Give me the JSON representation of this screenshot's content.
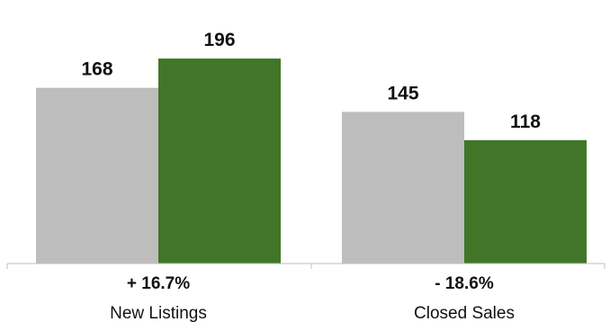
{
  "chart_data": {
    "type": "bar",
    "categories": [
      "New Listings",
      "Closed Sales"
    ],
    "series": [
      {
        "values": [
          168,
          145
        ],
        "color": "#bdbdbd"
      },
      {
        "values": [
          196,
          118
        ],
        "color": "#417628"
      }
    ],
    "changes": [
      "+ 16.7%",
      "- 18.6%"
    ],
    "ylim": [
      0,
      215
    ],
    "grid": false,
    "legend": "none"
  }
}
